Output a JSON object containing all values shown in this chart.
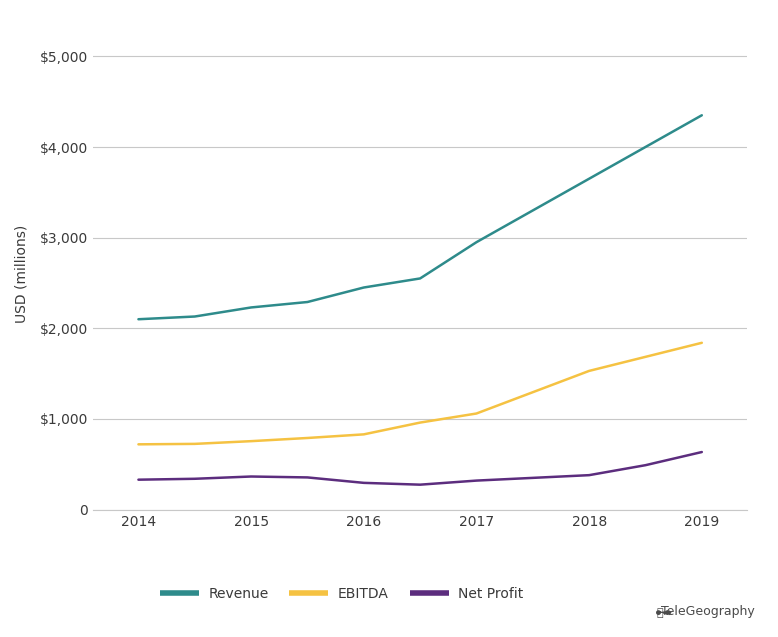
{
  "revenue_x": [
    2014,
    2014.5,
    2015,
    2015.5,
    2016,
    2016.5,
    2017,
    2018,
    2019
  ],
  "revenue_y": [
    2100,
    2130,
    2230,
    2290,
    2450,
    2550,
    2950,
    3650,
    4350
  ],
  "ebitda_x": [
    2014,
    2014.5,
    2015,
    2015.5,
    2016,
    2016.5,
    2017,
    2018,
    2019
  ],
  "ebitda_y": [
    720,
    725,
    755,
    790,
    830,
    960,
    1060,
    1530,
    1840
  ],
  "net_profit_x": [
    2014,
    2014.5,
    2015,
    2015.5,
    2016,
    2016.5,
    2017,
    2017.5,
    2018,
    2018.5,
    2019
  ],
  "net_profit_y": [
    330,
    340,
    365,
    355,
    295,
    275,
    320,
    350,
    380,
    490,
    635
  ],
  "revenue_color": "#2e8b8b",
  "ebitda_color": "#f5c242",
  "net_profit_color": "#5c2d7e",
  "background_color": "#ffffff",
  "grid_color": "#c8c8c8",
  "ylabel": "USD (millions)",
  "ylim": [
    0,
    5200
  ],
  "yticks": [
    0,
    1000,
    2000,
    3000,
    4000,
    5000
  ],
  "ytick_labels": [
    "0",
    "$1,000",
    "$2,000",
    "$3,000",
    "$4,000",
    "$5,000"
  ],
  "xlim": [
    2013.6,
    2019.4
  ],
  "xticks": [
    2014,
    2015,
    2016,
    2017,
    2018,
    2019
  ],
  "legend_labels": [
    "Revenue",
    "EBITDA",
    "Net Profit"
  ],
  "line_width": 1.8,
  "font_color": "#3a3a3a",
  "tick_font_size": 10,
  "ylabel_font_size": 10,
  "watermark_text": "TeleGeography"
}
